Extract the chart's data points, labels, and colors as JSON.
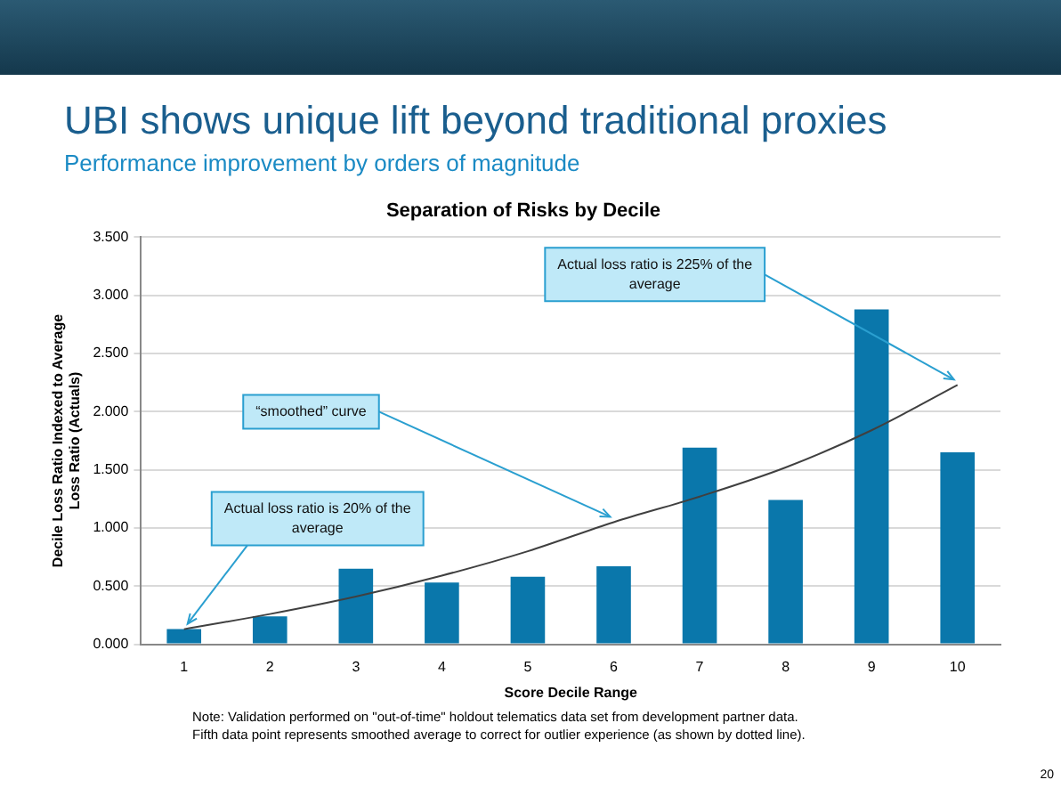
{
  "chart_data": {
    "type": "bar",
    "title": "Separation of Risks by Decile",
    "xlabel": "Score Decile Range",
    "ylabel": "Decile Loss Ratio Indexed to Average Loss Ratio (Actuals)",
    "categories": [
      "1",
      "2",
      "3",
      "4",
      "5",
      "6",
      "7",
      "8",
      "9",
      "10"
    ],
    "series": [
      {
        "color": "#0a77ab",
        "values": [
          0.13,
          0.24,
          0.65,
          0.53,
          0.58,
          0.67,
          1.69,
          1.24,
          2.88,
          1.65
        ]
      },
      {
        "type": "line",
        "color": "#404040",
        "marker": "none",
        "line_style": "solid",
        "values": [
          0.13,
          0.26,
          0.41,
          0.59,
          0.8,
          1.05,
          1.27,
          1.52,
          1.84,
          2.23
        ]
      }
    ],
    "ylim": [
      0,
      3.5
    ],
    "yticks": [
      {
        "value": 0,
        "label": "0.000"
      },
      {
        "value": 0.5,
        "label": "0.500"
      },
      {
        "value": 1,
        "label": "1.000"
      },
      {
        "value": 1.5,
        "label": "1.500"
      },
      {
        "value": 2,
        "label": "2.000"
      },
      {
        "value": 2.5,
        "label": "2.500"
      },
      {
        "value": 3,
        "label": "3.000"
      },
      {
        "value": 3.5,
        "label": "3.500"
      }
    ],
    "grid": "y",
    "legend": false,
    "annotations": [
      {
        "text": "UBI shows unique lift beyond traditional proxies"
      },
      {
        "text": "Performance improvement by orders of magnitude"
      },
      {
        "text": "Actual loss ratio is 20% of the average",
        "x": "1",
        "y": 0.13
      },
      {
        "text": "Actual loss ratio is 225% of the average",
        "x": "10",
        "y": 2.23
      },
      {
        "text": "“smoothed” curve",
        "x": "6",
        "y": 1.05
      },
      {
        "text": "Note: Validation performed on \"out-of-time\" holdout  telematics data set from development partner data."
      },
      {
        "text": "Fifth data point represents smoothed average to correct for outlier experience (as shown by dotted line)."
      },
      {
        "text": "20"
      }
    ]
  }
}
